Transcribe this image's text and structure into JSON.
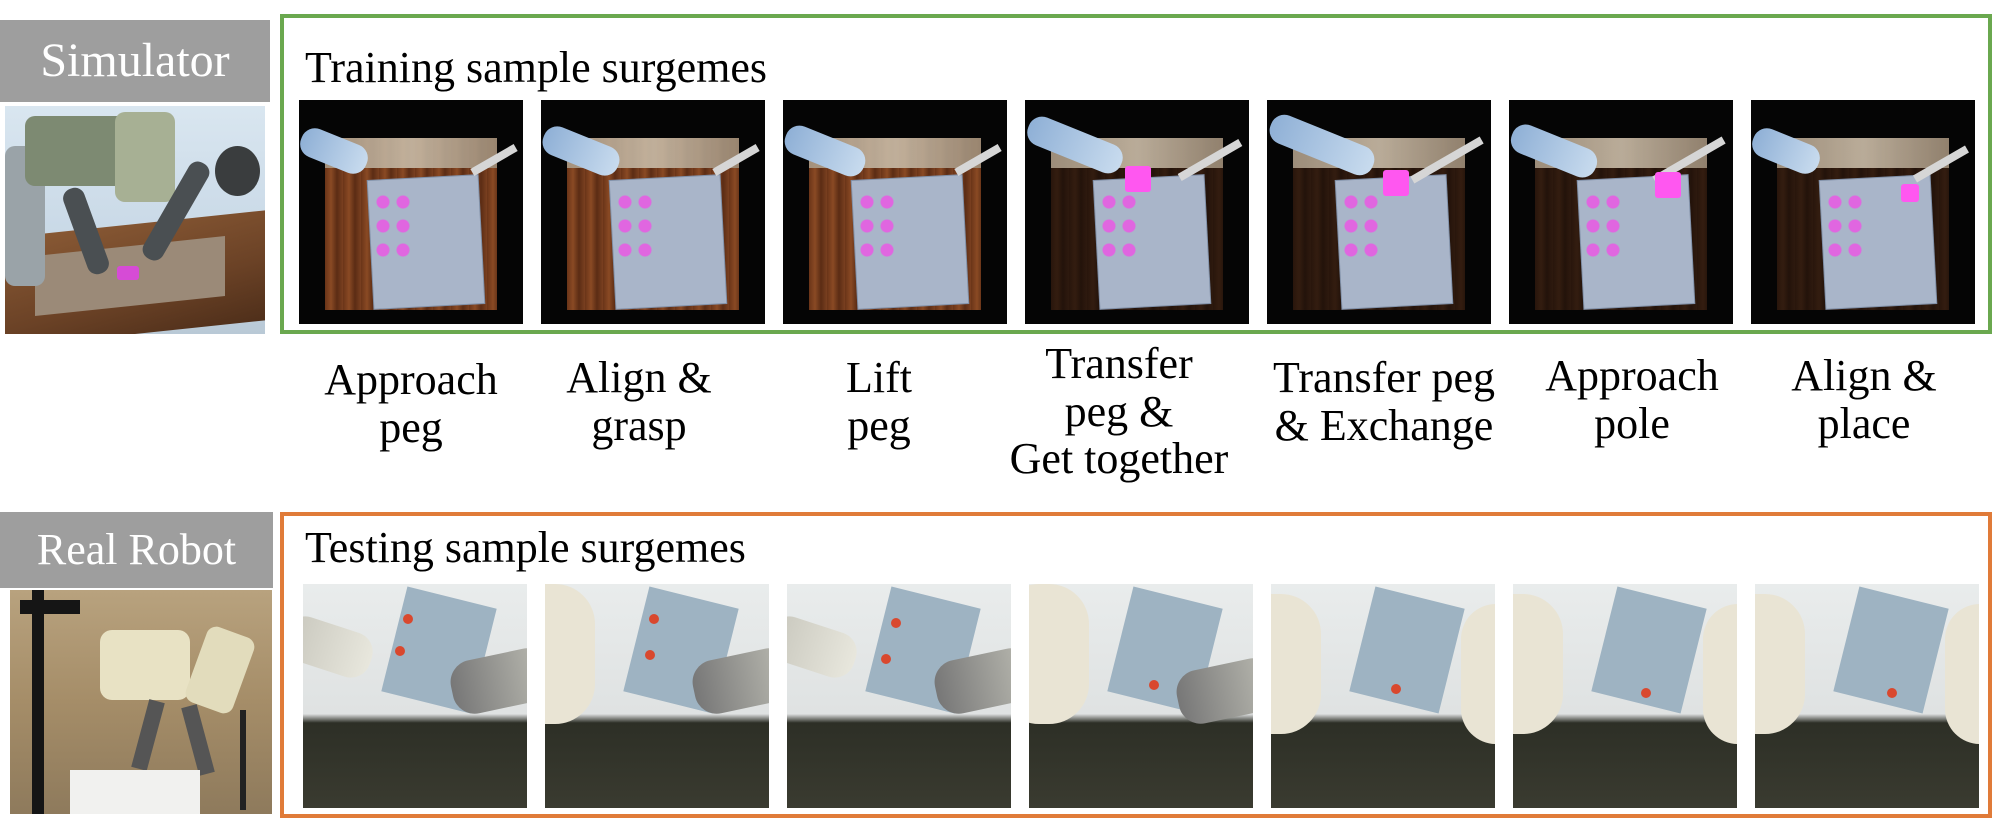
{
  "labels": {
    "simulator": "Simulator",
    "real_robot": "Real Robot"
  },
  "training": {
    "title": "Training sample surgemes",
    "frame_color": "#6aa84f"
  },
  "testing": {
    "title": "Testing sample surgemes",
    "frame_color": "#e07b39"
  },
  "surgemes": [
    {
      "line1": "Approach",
      "line2": "peg",
      "line3": ""
    },
    {
      "line1": "Align &",
      "line2": "grasp",
      "line3": ""
    },
    {
      "line1": "Lift",
      "line2": "peg",
      "line3": ""
    },
    {
      "line1": "Transfer",
      "line2": "peg &",
      "line3": "Get together"
    },
    {
      "line1": "Transfer peg",
      "line2": "& Exchange",
      "line3": ""
    },
    {
      "line1": "Approach",
      "line2": "pole",
      "line3": ""
    },
    {
      "line1": "Align &",
      "line2": "place",
      "line3": ""
    }
  ]
}
